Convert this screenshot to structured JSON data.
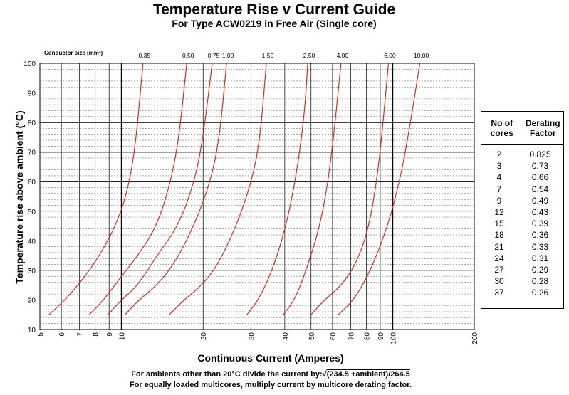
{
  "chart_data": {
    "type": "line",
    "title": "Temperature Rise v Current Guide",
    "subtitle": "For Type ACW0219 in Free Air (Single core)",
    "xlabel": "Continuous Current (Amperes)",
    "ylabel": "Temperature rise above ambient (°C)",
    "x_scale": "log",
    "xlim": [
      5,
      200
    ],
    "ylim": [
      10,
      100
    ],
    "x_ticks": [
      5,
      6,
      7,
      8,
      9,
      10,
      20,
      30,
      40,
      50,
      60,
      70,
      80,
      90,
      100,
      200
    ],
    "y_ticks": [
      10,
      20,
      30,
      40,
      50,
      60,
      70,
      80,
      90,
      100
    ],
    "grid": true,
    "series_label_title": "Conductor size (mm²)",
    "series": [
      {
        "name": "0.35",
        "x": [
          5.4,
          6.2,
          7.2,
          8.3,
          9.5,
          10.4,
          11.2,
          12.0
        ],
        "y": [
          15,
          20,
          27,
          35,
          45,
          55,
          70,
          100
        ]
      },
      {
        "name": "0.50",
        "x": [
          7.6,
          8.6,
          9.8,
          11.5,
          13.5,
          15.2,
          16.3,
          17.4
        ],
        "y": [
          15,
          20,
          27,
          35,
          45,
          60,
          75,
          100
        ]
      },
      {
        "name": "0.75",
        "x": [
          8.9,
          10.0,
          11.5,
          13.5,
          16.2,
          18.6,
          20.0,
          21.6
        ],
        "y": [
          15,
          20,
          25,
          35,
          45,
          60,
          75,
          100
        ]
      },
      {
        "name": "1.00",
        "x": [
          10.3,
          11.6,
          13.5,
          15.6,
          18.5,
          21.3,
          23.0,
          24.4
        ],
        "y": [
          15,
          20,
          25,
          32,
          45,
          60,
          75,
          100
        ]
      },
      {
        "name": "1.50",
        "x": [
          15.0,
          17.0,
          19.8,
          22.7,
          26.5,
          30.2,
          32.5,
          34.2
        ],
        "y": [
          15,
          20,
          25,
          32,
          45,
          60,
          75,
          100
        ]
      },
      {
        "name": "2.50",
        "x": [
          29.0,
          32.0,
          36.0,
          40.5,
          44.7,
          47.5,
          48.6
        ],
        "y": [
          15,
          20,
          30,
          45,
          65,
          85,
          100
        ]
      },
      {
        "name": "4.00",
        "x": [
          39.5,
          43.5,
          48.0,
          54.0,
          59.0,
          64.5
        ],
        "y": [
          15,
          20,
          30,
          45,
          65,
          100
        ]
      },
      {
        "name": "6.00",
        "x": [
          50.0,
          56.0,
          65.0,
          74.0,
          82.0,
          89.0,
          96.5
        ],
        "y": [
          15,
          20,
          25,
          33,
          45,
          65,
          100
        ]
      },
      {
        "name": "10.00",
        "x": [
          63.0,
          72.0,
          83.0,
          96.0,
          106.0,
          114.0,
          126.0
        ],
        "y": [
          15,
          20,
          30,
          45,
          60,
          75,
          100
        ]
      }
    ]
  },
  "derating_table": {
    "header_cores": "No of cores",
    "header_factor": "Derating Factor",
    "rows": [
      {
        "cores": "2",
        "factor": "0.825"
      },
      {
        "cores": "3",
        "factor": "0.73"
      },
      {
        "cores": "4",
        "factor": "0.66"
      },
      {
        "cores": "7",
        "factor": "0.54"
      },
      {
        "cores": "9",
        "factor": "0.49"
      },
      {
        "cores": "12",
        "factor": "0.43"
      },
      {
        "cores": "15",
        "factor": "0.39"
      },
      {
        "cores": "18",
        "factor": "0.36"
      },
      {
        "cores": "21",
        "factor": "0.33"
      },
      {
        "cores": "24",
        "factor": "0.31"
      },
      {
        "cores": "27",
        "factor": "0.29"
      },
      {
        "cores": "30",
        "factor": "0.28"
      },
      {
        "cores": "37",
        "factor": "0.26"
      }
    ]
  },
  "footnotes": {
    "line1_prefix": "For ambients other than 20°C divide the current by:",
    "line1_formula": "(234.5 +ambient)/264.5",
    "line2": "For equally loaded multicores, multiply current by multicore derating factor."
  },
  "colors": {
    "curve": "#e0281e",
    "grid": "#000000",
    "minor_grid": "#777777"
  }
}
